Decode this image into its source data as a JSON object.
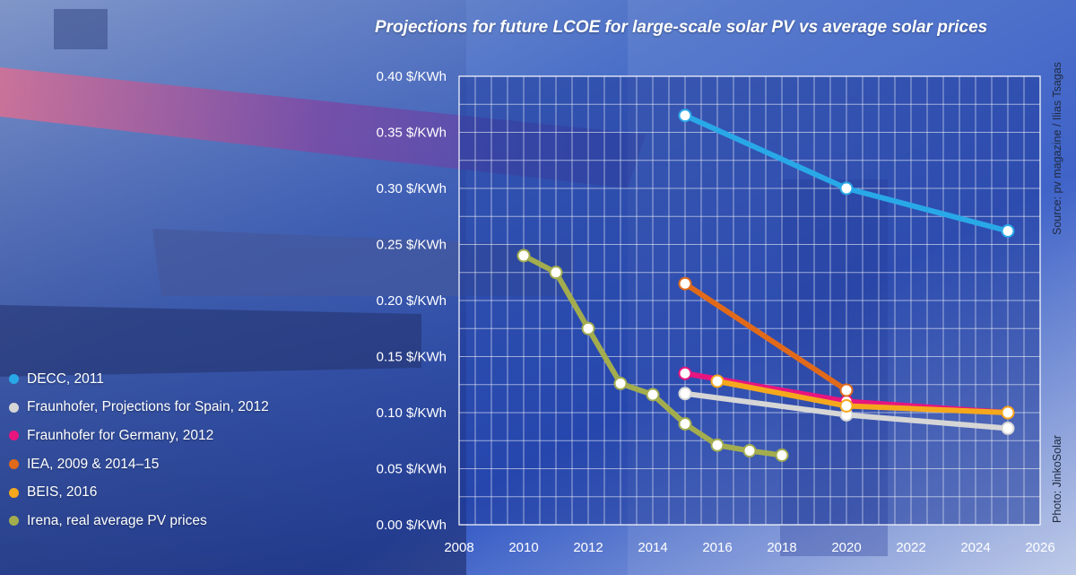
{
  "chart_data": {
    "type": "line",
    "title": "Projections for future LCOE for large-scale solar PV vs average solar prices",
    "xlim": [
      2008,
      2026
    ],
    "ylim": [
      0,
      0.4
    ],
    "x_ticks": [
      "2008",
      "2010",
      "2012",
      "2014",
      "2016",
      "2018",
      "2020",
      "2022",
      "2024",
      "2026"
    ],
    "y_ticks": [
      "0.00 $/KWh",
      "0.05 $/KWh",
      "0.10 $/KWh",
      "0.15 $/KWh",
      "0.20 $/KWh",
      "0.25 $/KWh",
      "0.30 $/KWh",
      "0.35 $/KWh",
      "0.40 $/KWh"
    ],
    "grid": true,
    "legend_position": "bottom-left",
    "series": [
      {
        "name": "DECC, 2011",
        "color": "#29a8e8",
        "points": [
          [
            2015,
            0.365
          ],
          [
            2020,
            0.3
          ],
          [
            2025,
            0.262
          ]
        ]
      },
      {
        "name": "Fraunhofer, Projections for Spain, 2012",
        "color": "#d6d6d6",
        "points": [
          [
            2015,
            0.117
          ],
          [
            2020,
            0.098
          ],
          [
            2025,
            0.086
          ]
        ]
      },
      {
        "name": "Fraunhofer for Germany, 2012",
        "color": "#e8157f",
        "points": [
          [
            2015,
            0.135
          ],
          [
            2020,
            0.11
          ],
          [
            2025,
            0.1
          ]
        ]
      },
      {
        "name": "IEA, 2009 & 2014–15",
        "color": "#e06a1a",
        "points": [
          [
            2015,
            0.215
          ],
          [
            2020,
            0.12
          ]
        ]
      },
      {
        "name": "BEIS, 2016",
        "color": "#f5a81c",
        "points": [
          [
            2016,
            0.128
          ],
          [
            2020,
            0.106
          ],
          [
            2025,
            0.1
          ]
        ]
      },
      {
        "name": "Irena, real average PV prices",
        "color": "#a3ad4e",
        "points": [
          [
            2010,
            0.24
          ],
          [
            2011,
            0.225
          ],
          [
            2012,
            0.175
          ],
          [
            2013,
            0.126
          ],
          [
            2014,
            0.116
          ],
          [
            2015,
            0.09
          ],
          [
            2016,
            0.071
          ],
          [
            2017,
            0.066
          ],
          [
            2018,
            0.062
          ]
        ]
      }
    ]
  },
  "credits": {
    "source": "Source: pv magazine / Ilias Tsagas",
    "photo": "Photo: JinkoSolar"
  }
}
